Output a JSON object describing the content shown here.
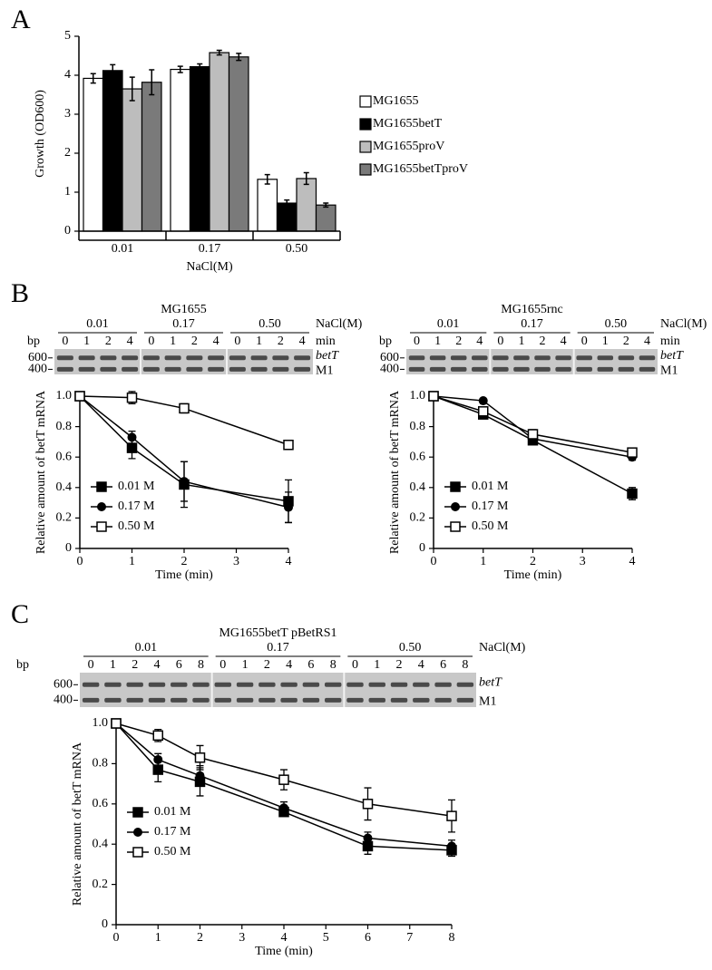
{
  "panel_labels": [
    "A",
    "B",
    "C"
  ],
  "chart_data": [
    {
      "type": "bar",
      "categories": [
        "0.01",
        "0.17",
        "0.50"
      ],
      "xlabel": "NaCl(M)",
      "ylabel": "Growth (OD600)",
      "ylim": [
        0,
        5
      ],
      "yticks": [
        0,
        1,
        2,
        3,
        4,
        5
      ],
      "legend": "right",
      "series": [
        {
          "name": "MG1655",
          "color": "#ffffff",
          "values": [
            3.92,
            4.15,
            1.33
          ],
          "errors": [
            0.12,
            0.08,
            0.12
          ]
        },
        {
          "name": "MG1655betT",
          "color": "#000000",
          "values": [
            4.12,
            4.22,
            0.72
          ],
          "errors": [
            0.15,
            0.07,
            0.08
          ]
        },
        {
          "name": "MG1655proV",
          "color": "#bdbdbd",
          "values": [
            3.65,
            4.58,
            1.35
          ],
          "errors": [
            0.3,
            0.06,
            0.15
          ]
        },
        {
          "name": "MG1655betTproV",
          "color": "#7a7a7a",
          "values": [
            3.82,
            4.47,
            0.67
          ],
          "errors": [
            0.32,
            0.09,
            0.05
          ]
        }
      ]
    },
    {
      "type": "line",
      "gel": {
        "title": "MG1655",
        "groups": [
          "0.01",
          "0.17",
          "0.50"
        ],
        "group_label": "NaCl(M)",
        "lanes": [
          "0",
          "1",
          "2",
          "4"
        ],
        "lane_label": "min",
        "bp_label": "bp",
        "markers": [
          "600",
          "400"
        ],
        "bands": [
          "betT",
          "M1"
        ]
      },
      "x": [
        0,
        1,
        2,
        4
      ],
      "xlim": [
        0,
        4
      ],
      "xticks": [
        0,
        1,
        2,
        3,
        4
      ],
      "ylim": [
        0,
        1
      ],
      "yticks": [
        0,
        0.2,
        0.4,
        0.6,
        0.8,
        {
          "value": 1,
          "label": "1.0"
        }
      ],
      "xlabel": "Time (min)",
      "ylabel": "Relative amount of betT mRNA",
      "legend": "lower left",
      "series": [
        {
          "name": "0.01 M",
          "color": "#000000",
          "marker": "square-filled",
          "values": [
            1,
            0.66,
            0.42,
            0.31
          ],
          "errors": [
            0,
            0.07,
            0.15,
            0.14
          ]
        },
        {
          "name": "0.17 M",
          "color": "#000000",
          "marker": "circle-filled",
          "values": [
            1,
            0.73,
            0.44,
            0.27
          ],
          "errors": [
            0,
            0.04,
            0.13,
            0.1
          ]
        },
        {
          "name": "0.50 M",
          "color": "#000000",
          "marker": "square-open",
          "values": [
            1,
            0.99,
            0.92,
            0.68
          ],
          "errors": [
            0,
            0.04,
            0.03,
            0.02
          ]
        }
      ]
    },
    {
      "type": "line",
      "gel": {
        "title": "MG1655rnc",
        "groups": [
          "0.01",
          "0.17",
          "0.50"
        ],
        "group_label": "NaCl(M)",
        "lanes": [
          "0",
          "1",
          "2",
          "4"
        ],
        "lane_label": "min",
        "bp_label": "bp",
        "markers": [
          "600",
          "400"
        ],
        "bands": [
          "betT",
          "M1"
        ]
      },
      "x": [
        0,
        1,
        2,
        4
      ],
      "xlim": [
        0,
        4
      ],
      "xticks": [
        0,
        1,
        2,
        3,
        4
      ],
      "ylim": [
        0,
        1
      ],
      "yticks": [
        0,
        0.2,
        0.4,
        0.6,
        0.8,
        {
          "value": 1,
          "label": "1.0"
        }
      ],
      "xlabel": "Time (min)",
      "ylabel": "Relative amount of betT mRNA",
      "legend": "lower left",
      "series": [
        {
          "name": "0.01 M",
          "color": "#000000",
          "marker": "square-filled",
          "values": [
            1,
            0.88,
            0.71,
            0.36
          ],
          "errors": [
            0,
            0.02,
            0.02,
            0.04
          ]
        },
        {
          "name": "0.17 M",
          "color": "#000000",
          "marker": "circle-filled",
          "values": [
            1,
            0.97,
            0.72,
            0.6
          ],
          "errors": [
            0,
            0.01,
            0.02,
            0.02
          ]
        },
        {
          "name": "0.50 M",
          "color": "#000000",
          "marker": "square-open",
          "values": [
            1,
            0.9,
            0.75,
            0.63
          ],
          "errors": [
            0,
            0.02,
            0.03,
            0.02
          ]
        }
      ]
    },
    {
      "type": "line",
      "gel": {
        "title": "MG1655betT pBetRS1",
        "groups": [
          "0.01",
          "0.17",
          "0.50"
        ],
        "group_label": "NaCl(M)",
        "lanes": [
          "0",
          "1",
          "2",
          "4",
          "6",
          "8"
        ],
        "bp_label": "bp",
        "markers": [
          "600",
          "400"
        ],
        "bands": [
          "betT",
          "M1"
        ]
      },
      "x": [
        0,
        1,
        2,
        4,
        6,
        8
      ],
      "xlim": [
        0,
        8
      ],
      "xticks": [
        0,
        1,
        2,
        3,
        4,
        5,
        6,
        7,
        8
      ],
      "ylim": [
        0,
        1
      ],
      "yticks": [
        0,
        0.2,
        0.4,
        0.6,
        0.8,
        {
          "value": 1,
          "label": "1.0"
        }
      ],
      "xlabel": "Time (min)",
      "ylabel": "Relative amount of betT mRNA",
      "legend": "lower left",
      "series": [
        {
          "name": "0.01 M",
          "color": "#000000",
          "marker": "square-filled",
          "values": [
            1,
            0.77,
            0.71,
            0.56,
            0.39,
            0.37
          ],
          "errors": [
            0,
            0.06,
            0.07,
            0.02,
            0.04,
            0.03
          ]
        },
        {
          "name": "0.17 M",
          "color": "#000000",
          "marker": "circle-filled",
          "values": [
            1,
            0.82,
            0.74,
            0.58,
            0.43,
            0.39
          ],
          "errors": [
            0,
            0.03,
            0.05,
            0.03,
            0.03,
            0.03
          ]
        },
        {
          "name": "0.50 M",
          "color": "#000000",
          "marker": "square-open",
          "values": [
            1,
            0.94,
            0.83,
            0.72,
            0.6,
            0.54
          ],
          "errors": [
            0,
            0.03,
            0.06,
            0.05,
            0.08,
            0.08
          ]
        }
      ]
    }
  ]
}
